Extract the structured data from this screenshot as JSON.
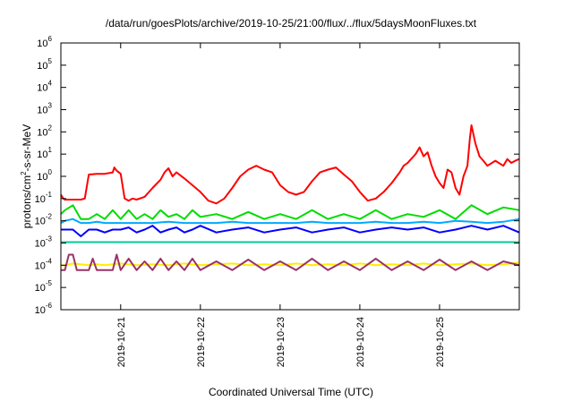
{
  "chart_data": {
    "type": "line",
    "title": "/data/run/goesPlots/archive/2019-10-25/21:00/flux/../flux/5daysMoonFluxes.txt",
    "xlabel": "Coordinated Universal Time (UTC)",
    "ylabel": {
      "prefix": "protons/cm",
      "sup": "2",
      "suffix": "-s-sr-MeV"
    },
    "x_unit": "days",
    "xlim": [
      -0.75,
      5.0
    ],
    "x_ticks": [
      {
        "x": 0,
        "label": "2019-10-21"
      },
      {
        "x": 1,
        "label": "2019-10-22"
      },
      {
        "x": 2,
        "label": "2019-10-23"
      },
      {
        "x": 3,
        "label": "2019-10-24"
      },
      {
        "x": 4,
        "label": "2019-10-25"
      }
    ],
    "y_scale": "log",
    "ylim": [
      1e-06,
      1000000.0
    ],
    "y_ticks": [
      {
        "exp": -6
      },
      {
        "exp": -5
      },
      {
        "exp": -4
      },
      {
        "exp": -3
      },
      {
        "exp": -2
      },
      {
        "exp": -1
      },
      {
        "exp": 0
      },
      {
        "exp": 1
      },
      {
        "exp": 2
      },
      {
        "exp": 3
      },
      {
        "exp": 4
      },
      {
        "exp": 5
      },
      {
        "exp": 6
      }
    ],
    "y_tick_base": "10",
    "grid": false,
    "legend": "none",
    "series": [
      {
        "color": "#ff0000",
        "x": [
          -0.75,
          -0.72,
          -0.7,
          -0.6,
          -0.5,
          -0.45,
          -0.4,
          -0.3,
          -0.2,
          -0.1,
          -0.08,
          -0.05,
          0.0,
          0.05,
          0.1,
          0.15,
          0.2,
          0.3,
          0.4,
          0.5,
          0.55,
          0.6,
          0.65,
          0.7,
          0.8,
          0.9,
          1.0,
          1.1,
          1.2,
          1.3,
          1.4,
          1.5,
          1.6,
          1.7,
          1.8,
          1.9,
          2.0,
          2.1,
          2.2,
          2.3,
          2.4,
          2.5,
          2.6,
          2.7,
          2.8,
          2.9,
          3.0,
          3.1,
          3.2,
          3.3,
          3.4,
          3.5,
          3.55,
          3.6,
          3.7,
          3.75,
          3.8,
          3.85,
          3.9,
          3.95,
          4.0,
          4.05,
          4.1,
          4.15,
          4.2,
          4.25,
          4.3,
          4.35,
          4.38,
          4.4,
          4.45,
          4.5,
          4.55,
          4.6,
          4.7,
          4.8,
          4.85,
          4.9,
          4.95,
          5.0
        ],
        "y": [
          0.15,
          0.1,
          0.09,
          0.09,
          0.09,
          0.1,
          1.2,
          1.3,
          1.3,
          1.5,
          2.5,
          1.8,
          1.3,
          0.1,
          0.08,
          0.1,
          0.09,
          0.12,
          0.3,
          0.7,
          1.5,
          2.3,
          1.0,
          1.5,
          0.8,
          0.4,
          0.2,
          0.08,
          0.06,
          0.1,
          0.3,
          1.0,
          2.0,
          3.0,
          2.0,
          1.5,
          0.4,
          0.2,
          0.15,
          0.2,
          0.6,
          1.5,
          2.0,
          2.5,
          1.2,
          0.6,
          0.2,
          0.08,
          0.1,
          0.2,
          0.5,
          1.5,
          3.0,
          4.0,
          10.0,
          20.0,
          8.0,
          12.0,
          3.0,
          1.0,
          0.5,
          0.3,
          2.0,
          1.5,
          0.3,
          0.15,
          1.0,
          3.0,
          50.0,
          200.0,
          30.0,
          8.0,
          5.0,
          3.0,
          5.0,
          3.0,
          6.0,
          4.0,
          5.0,
          6.0
        ]
      },
      {
        "color": "#00dd00",
        "x": [
          -0.75,
          -0.7,
          -0.6,
          -0.5,
          -0.4,
          -0.3,
          -0.2,
          -0.1,
          0.0,
          0.1,
          0.2,
          0.3,
          0.4,
          0.5,
          0.6,
          0.7,
          0.8,
          0.9,
          1.0,
          1.2,
          1.4,
          1.6,
          1.8,
          2.0,
          2.2,
          2.4,
          2.6,
          2.8,
          3.0,
          3.2,
          3.4,
          3.6,
          3.8,
          4.0,
          4.2,
          4.4,
          4.6,
          4.8,
          5.0
        ],
        "y": [
          0.02,
          0.03,
          0.05,
          0.012,
          0.012,
          0.02,
          0.012,
          0.03,
          0.012,
          0.03,
          0.012,
          0.02,
          0.012,
          0.03,
          0.015,
          0.02,
          0.012,
          0.03,
          0.015,
          0.02,
          0.012,
          0.025,
          0.012,
          0.02,
          0.012,
          0.03,
          0.012,
          0.02,
          0.012,
          0.03,
          0.012,
          0.02,
          0.015,
          0.03,
          0.012,
          0.05,
          0.02,
          0.04,
          0.03
        ]
      },
      {
        "color": "#00aaff",
        "x": [
          -0.75,
          -0.7,
          -0.6,
          -0.5,
          -0.4,
          -0.3,
          -0.2,
          -0.1,
          0.0,
          0.2,
          0.4,
          0.6,
          0.8,
          1.0,
          1.2,
          1.4,
          1.6,
          1.8,
          2.0,
          2.2,
          2.4,
          2.6,
          2.8,
          3.0,
          3.2,
          3.4,
          3.6,
          3.8,
          4.0,
          4.2,
          4.4,
          4.6,
          4.8,
          5.0
        ],
        "y": [
          0.008,
          0.01,
          0.012,
          0.008,
          0.008,
          0.009,
          0.008,
          0.008,
          0.008,
          0.008,
          0.008,
          0.009,
          0.008,
          0.008,
          0.008,
          0.009,
          0.008,
          0.008,
          0.008,
          0.008,
          0.009,
          0.008,
          0.008,
          0.008,
          0.009,
          0.008,
          0.008,
          0.009,
          0.008,
          0.01,
          0.009,
          0.008,
          0.009,
          0.012
        ]
      },
      {
        "color": "#0000ff",
        "x": [
          -0.75,
          -0.7,
          -0.6,
          -0.5,
          -0.4,
          -0.3,
          -0.2,
          -0.1,
          0.0,
          0.1,
          0.2,
          0.3,
          0.4,
          0.5,
          0.6,
          0.7,
          0.8,
          0.9,
          1.0,
          1.2,
          1.4,
          1.6,
          1.8,
          2.0,
          2.2,
          2.4,
          2.6,
          2.8,
          3.0,
          3.2,
          3.4,
          3.6,
          3.8,
          4.0,
          4.2,
          4.4,
          4.6,
          4.8,
          5.0
        ],
        "y": [
          0.004,
          0.004,
          0.004,
          0.002,
          0.004,
          0.004,
          0.003,
          0.004,
          0.004,
          0.005,
          0.003,
          0.004,
          0.006,
          0.003,
          0.004,
          0.005,
          0.003,
          0.004,
          0.006,
          0.003,
          0.004,
          0.005,
          0.003,
          0.004,
          0.005,
          0.003,
          0.004,
          0.005,
          0.003,
          0.004,
          0.005,
          0.004,
          0.005,
          0.003,
          0.004,
          0.006,
          0.004,
          0.006,
          0.003
        ]
      },
      {
        "color": "#00cc99",
        "x": [
          -0.75,
          -0.7,
          -0.6,
          -0.5,
          -0.4,
          -0.3,
          -0.2,
          -0.1,
          0.0,
          0.2,
          0.4,
          0.6,
          0.8,
          1.0,
          1.2,
          1.4,
          1.6,
          1.8,
          2.0,
          2.2,
          2.4,
          2.6,
          2.8,
          3.0,
          3.2,
          3.4,
          3.6,
          3.8,
          4.0,
          4.2,
          4.4,
          4.6,
          4.8,
          5.0
        ],
        "y": [
          0.0011,
          0.0011,
          0.0011,
          0.0011,
          0.0011,
          0.0011,
          0.0011,
          0.0011,
          0.0011,
          0.0011,
          0.0011,
          0.0011,
          0.0011,
          0.0011,
          0.0011,
          0.0011,
          0.0011,
          0.0011,
          0.0011,
          0.0011,
          0.0011,
          0.0011,
          0.0011,
          0.0011,
          0.0011,
          0.0011,
          0.0011,
          0.0011,
          0.0011,
          0.0011,
          0.0011,
          0.0011,
          0.0011,
          0.0011
        ]
      },
      {
        "color": "#ffee00",
        "x": [
          -0.75,
          -0.7,
          -0.6,
          -0.5,
          -0.4,
          -0.3,
          -0.2,
          -0.1,
          0.0,
          0.2,
          0.4,
          0.6,
          0.8,
          1.0,
          1.2,
          1.4,
          1.6,
          1.8,
          2.0,
          2.2,
          2.4,
          2.6,
          2.8,
          3.0,
          3.2,
          3.4,
          3.6,
          3.8,
          4.0,
          4.2,
          4.4,
          4.6,
          4.8,
          5.0
        ],
        "y": [
          0.0001,
          0.0001,
          0.00012,
          0.00011,
          0.0001,
          0.00011,
          0.0001,
          0.00011,
          0.00012,
          0.0001,
          0.00011,
          0.0001,
          0.00012,
          0.0001,
          0.00011,
          0.00012,
          0.0001,
          0.00011,
          0.0001,
          0.00012,
          0.0001,
          0.00011,
          0.0001,
          0.00012,
          0.0001,
          0.00011,
          0.0001,
          0.00012,
          0.0001,
          0.00011,
          0.00012,
          0.0001,
          0.00011,
          0.00013
        ]
      },
      {
        "color": "#993366",
        "x": [
          -0.75,
          -0.7,
          -0.65,
          -0.6,
          -0.55,
          -0.5,
          -0.4,
          -0.35,
          -0.3,
          -0.2,
          -0.1,
          -0.05,
          0.0,
          0.1,
          0.2,
          0.3,
          0.4,
          0.5,
          0.6,
          0.7,
          0.8,
          0.9,
          1.0,
          1.2,
          1.4,
          1.6,
          1.8,
          2.0,
          2.2,
          2.4,
          2.6,
          2.8,
          3.0,
          3.2,
          3.4,
          3.6,
          3.8,
          4.0,
          4.2,
          4.4,
          4.6,
          4.8,
          5.0
        ],
        "y": [
          6e-05,
          6e-05,
          0.0003,
          0.0003,
          6e-05,
          6e-05,
          6e-05,
          0.0002,
          6e-05,
          6e-05,
          6e-05,
          0.0003,
          6e-05,
          0.0002,
          6e-05,
          0.00015,
          6e-05,
          0.0002,
          6e-05,
          0.00015,
          6e-05,
          0.0002,
          6e-05,
          0.00015,
          6e-05,
          0.00018,
          6e-05,
          0.00015,
          6e-05,
          0.0002,
          6e-05,
          0.00015,
          6e-05,
          0.0002,
          6e-05,
          0.00015,
          6e-05,
          0.00018,
          6e-05,
          0.00015,
          6e-05,
          0.00015,
          0.0001
        ]
      }
    ]
  }
}
